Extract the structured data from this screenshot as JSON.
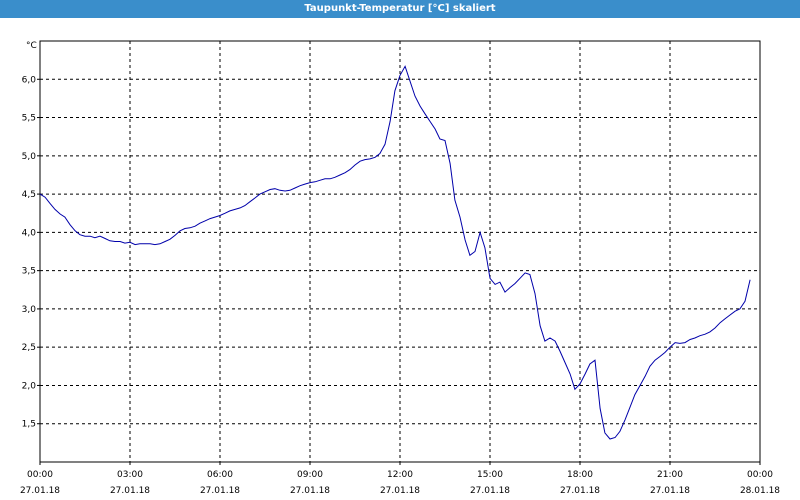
{
  "window": {
    "title": "Taupunkt-Temperatur [°C] skaliert"
  },
  "colors": {
    "titlebar": "#3a8ecb",
    "line": "#0000aa",
    "grid": "#000000",
    "background": "#ffffff"
  },
  "chart_data": {
    "type": "line",
    "title": "Taupunkt-Temperatur [°C] skaliert",
    "ylabel": "°C",
    "xlabel": "",
    "ylim": [
      1.0,
      6.5
    ],
    "xlim": [
      0,
      24
    ],
    "grid": true,
    "yticks": [
      "6,0",
      "5,5",
      "5,0",
      "4,5",
      "4,0",
      "3,5",
      "3,0",
      "2,5",
      "2,0",
      "1,5"
    ],
    "ytick_values": [
      6.0,
      5.5,
      5.0,
      4.5,
      4.0,
      3.5,
      3.0,
      2.5,
      2.0,
      1.5
    ],
    "xticks": [
      {
        "time": "00:00",
        "date": "27.01.18"
      },
      {
        "time": "03:00",
        "date": "27.01.18"
      },
      {
        "time": "06:00",
        "date": "27.01.18"
      },
      {
        "time": "09:00",
        "date": "27.01.18"
      },
      {
        "time": "12:00",
        "date": "27.01.18"
      },
      {
        "time": "15:00",
        "date": "27.01.18"
      },
      {
        "time": "18:00",
        "date": "27.01.18"
      },
      {
        "time": "21:00",
        "date": "27.01.18"
      },
      {
        "time": "00:00",
        "date": "28.01.18"
      }
    ],
    "xtick_hours": [
      0,
      3,
      6,
      9,
      12,
      15,
      18,
      21,
      24
    ],
    "series": [
      {
        "points": [
          [
            0.0,
            4.5
          ],
          [
            0.17,
            4.46
          ],
          [
            0.33,
            4.38
          ],
          [
            0.5,
            4.3
          ],
          [
            0.67,
            4.24
          ],
          [
            0.83,
            4.2
          ],
          [
            1.0,
            4.1
          ],
          [
            1.17,
            4.02
          ],
          [
            1.33,
            3.97
          ],
          [
            1.5,
            3.95
          ],
          [
            1.67,
            3.95
          ],
          [
            1.83,
            3.93
          ],
          [
            2.0,
            3.95
          ],
          [
            2.17,
            3.92
          ],
          [
            2.33,
            3.89
          ],
          [
            2.5,
            3.88
          ],
          [
            2.67,
            3.88
          ],
          [
            2.83,
            3.86
          ],
          [
            3.0,
            3.87
          ],
          [
            3.17,
            3.84
          ],
          [
            3.33,
            3.85
          ],
          [
            3.5,
            3.85
          ],
          [
            3.67,
            3.85
          ],
          [
            3.83,
            3.84
          ],
          [
            4.0,
            3.85
          ],
          [
            4.17,
            3.88
          ],
          [
            4.33,
            3.91
          ],
          [
            4.5,
            3.96
          ],
          [
            4.67,
            4.02
          ],
          [
            4.83,
            4.05
          ],
          [
            5.0,
            4.06
          ],
          [
            5.17,
            4.08
          ],
          [
            5.33,
            4.12
          ],
          [
            5.5,
            4.15
          ],
          [
            5.67,
            4.18
          ],
          [
            5.83,
            4.2
          ],
          [
            6.0,
            4.22
          ],
          [
            6.17,
            4.25
          ],
          [
            6.33,
            4.28
          ],
          [
            6.5,
            4.3
          ],
          [
            6.67,
            4.32
          ],
          [
            6.83,
            4.35
          ],
          [
            7.0,
            4.4
          ],
          [
            7.17,
            4.45
          ],
          [
            7.33,
            4.5
          ],
          [
            7.5,
            4.53
          ],
          [
            7.67,
            4.56
          ],
          [
            7.83,
            4.57
          ],
          [
            8.0,
            4.55
          ],
          [
            8.17,
            4.54
          ],
          [
            8.33,
            4.55
          ],
          [
            8.5,
            4.58
          ],
          [
            8.67,
            4.61
          ],
          [
            8.83,
            4.63
          ],
          [
            9.0,
            4.65
          ],
          [
            9.17,
            4.66
          ],
          [
            9.33,
            4.68
          ],
          [
            9.5,
            4.7
          ],
          [
            9.67,
            4.7
          ],
          [
            9.83,
            4.72
          ],
          [
            10.0,
            4.75
          ],
          [
            10.17,
            4.78
          ],
          [
            10.33,
            4.82
          ],
          [
            10.5,
            4.88
          ],
          [
            10.67,
            4.93
          ],
          [
            10.83,
            4.95
          ],
          [
            11.0,
            4.96
          ],
          [
            11.17,
            4.98
          ],
          [
            11.33,
            5.03
          ],
          [
            11.5,
            5.15
          ],
          [
            11.67,
            5.45
          ],
          [
            11.83,
            5.85
          ],
          [
            12.0,
            6.05
          ],
          [
            12.17,
            6.17
          ],
          [
            12.33,
            5.98
          ],
          [
            12.5,
            5.78
          ],
          [
            12.67,
            5.65
          ],
          [
            12.83,
            5.55
          ],
          [
            13.0,
            5.45
          ],
          [
            13.17,
            5.35
          ],
          [
            13.33,
            5.22
          ],
          [
            13.5,
            5.2
          ],
          [
            13.67,
            4.9
          ],
          [
            13.83,
            4.42
          ],
          [
            14.0,
            4.2
          ],
          [
            14.17,
            3.9
          ],
          [
            14.33,
            3.7
          ],
          [
            14.5,
            3.75
          ],
          [
            14.67,
            4.0
          ],
          [
            14.83,
            3.8
          ],
          [
            15.0,
            3.4
          ],
          [
            15.17,
            3.32
          ],
          [
            15.33,
            3.35
          ],
          [
            15.5,
            3.22
          ],
          [
            15.67,
            3.28
          ],
          [
            15.83,
            3.33
          ],
          [
            16.0,
            3.4
          ],
          [
            16.17,
            3.47
          ],
          [
            16.33,
            3.45
          ],
          [
            16.5,
            3.2
          ],
          [
            16.67,
            2.78
          ],
          [
            16.83,
            2.58
          ],
          [
            17.0,
            2.62
          ],
          [
            17.17,
            2.58
          ],
          [
            17.33,
            2.45
          ],
          [
            17.5,
            2.3
          ],
          [
            17.67,
            2.15
          ],
          [
            17.83,
            1.95
          ],
          [
            18.0,
            2.02
          ],
          [
            18.17,
            2.15
          ],
          [
            18.33,
            2.28
          ],
          [
            18.5,
            2.33
          ],
          [
            18.67,
            1.7
          ],
          [
            18.83,
            1.38
          ],
          [
            19.0,
            1.3
          ],
          [
            19.17,
            1.32
          ],
          [
            19.33,
            1.4
          ],
          [
            19.5,
            1.55
          ],
          [
            19.67,
            1.72
          ],
          [
            19.83,
            1.88
          ],
          [
            20.0,
            2.0
          ],
          [
            20.17,
            2.12
          ],
          [
            20.33,
            2.25
          ],
          [
            20.5,
            2.33
          ],
          [
            20.67,
            2.38
          ],
          [
            20.83,
            2.43
          ],
          [
            21.0,
            2.5
          ],
          [
            21.17,
            2.56
          ],
          [
            21.33,
            2.55
          ],
          [
            21.5,
            2.56
          ],
          [
            21.67,
            2.6
          ],
          [
            21.83,
            2.62
          ],
          [
            22.0,
            2.65
          ],
          [
            22.17,
            2.67
          ],
          [
            22.33,
            2.7
          ],
          [
            22.5,
            2.75
          ],
          [
            22.67,
            2.82
          ],
          [
            22.83,
            2.87
          ],
          [
            23.0,
            2.92
          ],
          [
            23.17,
            2.97
          ],
          [
            23.33,
            3.0
          ],
          [
            23.5,
            3.1
          ],
          [
            23.67,
            3.38
          ]
        ]
      }
    ]
  }
}
